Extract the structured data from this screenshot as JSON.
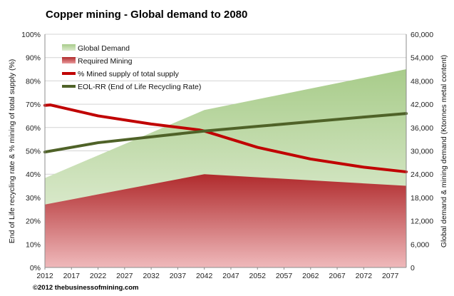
{
  "chart_data": {
    "type": "area",
    "title": "Copper mining - Global demand to 2080",
    "xlabel": "",
    "ylabel_left": "End of Life recycling rate & % mining of total supply (%)",
    "ylabel_right": "Global demand & mining demand (Ktonnes metal content)",
    "x": [
      2012,
      2042,
      2080
    ],
    "xticks": [
      "2012",
      "2017",
      "2022",
      "2027",
      "2032",
      "2037",
      "2042",
      "2047",
      "2052",
      "2057",
      "2062",
      "2067",
      "2072",
      "2077"
    ],
    "xlim": [
      2012,
      2080
    ],
    "ylim_left": [
      0,
      100
    ],
    "ylim_right": [
      0,
      60000
    ],
    "yticks_left": [
      "0%",
      "10%",
      "20%",
      "30%",
      "40%",
      "50%",
      "60%",
      "70%",
      "80%",
      "90%",
      "100%"
    ],
    "yticks_right": [
      "0",
      "6,000",
      "12,000",
      "18,000",
      "24,000",
      "30,000",
      "36,000",
      "42,000",
      "48,000",
      "54,000",
      "60,000"
    ],
    "series": [
      {
        "name": "Global Demand",
        "kind": "area",
        "axis": "right",
        "color": "#b9d79f",
        "x": [
          2012,
          2042,
          2080
        ],
        "values": [
          23000,
          40500,
          51000
        ]
      },
      {
        "name": "Required Mining",
        "kind": "area",
        "axis": "right",
        "color": "#d66b6e",
        "x": [
          2012,
          2042,
          2080
        ],
        "values": [
          16200,
          24000,
          21000
        ]
      },
      {
        "name": "% Mined supply of total supply",
        "kind": "line",
        "axis": "left",
        "color": "#c00000",
        "x": [
          2012,
          2013,
          2022,
          2032,
          2041,
          2042,
          2052,
          2062,
          2072,
          2080
        ],
        "values": [
          69.5,
          69.7,
          65,
          61.5,
          59,
          58.5,
          51.5,
          46.5,
          43,
          41
        ]
      },
      {
        "name": "EOL-RR (End of Life Recycling Rate)",
        "kind": "line",
        "axis": "left",
        "color": "#4f6228",
        "x": [
          2012,
          2022,
          2032,
          2042,
          2052,
          2062,
          2072,
          2080
        ],
        "values": [
          49.5,
          53.5,
          56,
          58.5,
          60.5,
          62.5,
          64.5,
          66
        ]
      }
    ],
    "legend": "top-left",
    "grid": true
  },
  "credit": "©2012 thebusinessofmining.com"
}
